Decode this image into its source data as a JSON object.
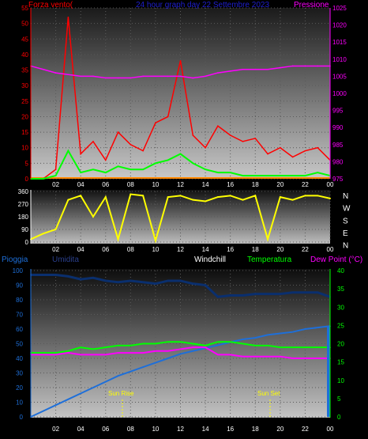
{
  "panel1": {
    "title": "24 hour graph day  22 Settembre 2023",
    "left_label": "Forza vento(",
    "right_label": "Pressione",
    "left_ticks": [
      "55",
      "50",
      "45",
      "40",
      "35",
      "30",
      "25",
      "20",
      "15",
      "10",
      "5",
      "0"
    ],
    "right_ticks": [
      "1025",
      "1020",
      "1015",
      "1010",
      "1005",
      "1000",
      "995",
      "990",
      "985",
      "980",
      "975"
    ],
    "x_ticks": [
      "02",
      "04",
      "06",
      "08",
      "10",
      "12",
      "14",
      "16",
      "18",
      "20",
      "22",
      "00"
    ],
    "colors": {
      "wind_gust": "#ff0000",
      "wind_avg": "#00ff00",
      "pressure": "#ff00ff",
      "baseline": "#ff8800",
      "left_axis": "#ff0000",
      "right_axis": "#ff00ff",
      "title": "#1f1fd0"
    }
  },
  "panel2": {
    "y_ticks": [
      "360",
      "270",
      "180",
      "90",
      "0"
    ],
    "compass": [
      "N",
      "W",
      "S",
      "E",
      "N"
    ],
    "x_ticks": [
      "02",
      "04",
      "06",
      "08",
      "10",
      "12",
      "14",
      "16",
      "18",
      "20",
      "22",
      "00"
    ],
    "colors": {
      "direction": "#ffff00"
    }
  },
  "panel3": {
    "labels": {
      "rain": "Pioggia",
      "humidity": "Umidita",
      "windchill": "Windchill",
      "temperature": "Temperatura",
      "dew": "Dew Point (°C)"
    },
    "left_ticks": [
      "100",
      "90",
      "80",
      "70",
      "60",
      "50",
      "40",
      "30",
      "20",
      "10",
      "0"
    ],
    "right_ticks": [
      "40",
      "35",
      "30",
      "25",
      "20",
      "15",
      "10",
      "5",
      "0"
    ],
    "x_ticks": [
      "02",
      "04",
      "06",
      "08",
      "10",
      "12",
      "14",
      "16",
      "18",
      "20",
      "22",
      "00"
    ],
    "sun_rise": "Sun Rise",
    "sun_set": "Sun Set",
    "colors": {
      "rain": "#1e6fd9",
      "humidity": "#0a2f6e",
      "temperature": "#00ff00",
      "dew": "#ff00ff",
      "windchill": "#ffffff",
      "sun": "#ffff00",
      "left_axis": "#1e6fd9",
      "right_axis": "#00ff00"
    }
  },
  "chart_data": [
    {
      "type": "line",
      "xlabel": "",
      "x": [
        0,
        1,
        2,
        3,
        4,
        5,
        6,
        7,
        8,
        9,
        10,
        11,
        12,
        13,
        14,
        15,
        16,
        17,
        18,
        19,
        20,
        21,
        22,
        23,
        24
      ],
      "ylim": [
        0,
        55
      ],
      "y2lim": [
        975,
        1025
      ],
      "series": [
        {
          "name": "Forza vento",
          "values": [
            0,
            0,
            3,
            52,
            8,
            12,
            6,
            15,
            11,
            9,
            18,
            20,
            38,
            14,
            10,
            17,
            14,
            12,
            13,
            8,
            10,
            7,
            9,
            10,
            6
          ]
        },
        {
          "name": "",
          "values": [
            0,
            0,
            1,
            9,
            2,
            3,
            2,
            4,
            3,
            3,
            5,
            6,
            8,
            5,
            3,
            2,
            2,
            1,
            1,
            1,
            1,
            1,
            1,
            2,
            1
          ]
        },
        {
          "name": "Pressione",
          "values": [
            1008,
            1007,
            1006,
            1005.5,
            1005,
            1005,
            1004.5,
            1004.5,
            1004.5,
            1005,
            1005,
            1005,
            1005,
            1004.5,
            1005,
            1006,
            1006.5,
            1007,
            1007,
            1007,
            1007.5,
            1008,
            1008,
            1008,
            1008
          ]
        }
      ]
    },
    {
      "type": "line",
      "x": [
        0,
        1,
        2,
        3,
        4,
        5,
        6,
        7,
        8,
        9,
        10,
        11,
        12,
        13,
        14,
        15,
        16,
        17,
        18,
        19,
        20,
        21,
        22,
        23,
        24
      ],
      "ylim": [
        0,
        360
      ],
      "series": [
        {
          "name": "",
          "values": [
            20,
            60,
            90,
            300,
            330,
            180,
            320,
            20,
            340,
            330,
            10,
            320,
            330,
            300,
            290,
            320,
            330,
            300,
            330,
            20,
            320,
            300,
            330,
            330,
            310
          ]
        }
      ]
    },
    {
      "type": "line",
      "x": [
        0,
        1,
        2,
        3,
        4,
        5,
        6,
        7,
        8,
        9,
        10,
        11,
        12,
        13,
        14,
        15,
        16,
        17,
        18,
        19,
        20,
        21,
        22,
        23,
        24
      ],
      "ylim": [
        0,
        100
      ],
      "y2lim": [
        0,
        40
      ],
      "series": [
        {
          "name": "Pioggia",
          "values": [
            0,
            4,
            8,
            12,
            16,
            20,
            24,
            28,
            31,
            34,
            37,
            40,
            43,
            45,
            47,
            49,
            51,
            53,
            54,
            56,
            57,
            58,
            60,
            61,
            62
          ]
        },
        {
          "name": "Umidita",
          "values": [
            97,
            97,
            97,
            96,
            94,
            95,
            93,
            92,
            93,
            92,
            91,
            93,
            93,
            91,
            90,
            82,
            83,
            83,
            84,
            84,
            84,
            85,
            85,
            85,
            82
          ]
        },
        {
          "name": "Temperatura",
          "values": [
            17.5,
            17.5,
            17.5,
            18,
            19,
            18.5,
            19,
            19.5,
            19.5,
            20,
            20,
            20.5,
            20.5,
            20,
            19.5,
            20.5,
            20.5,
            20,
            19.5,
            19.5,
            19,
            19,
            19,
            19,
            19
          ]
        },
        {
          "name": "Dew Point (°C)",
          "values": [
            17,
            17,
            17,
            17.5,
            17,
            17,
            17,
            17.5,
            17.5,
            17.5,
            18,
            18,
            18.5,
            19,
            19,
            17,
            17,
            16.5,
            16.5,
            16.5,
            16.5,
            16,
            16,
            16,
            16
          ]
        }
      ]
    }
  ]
}
